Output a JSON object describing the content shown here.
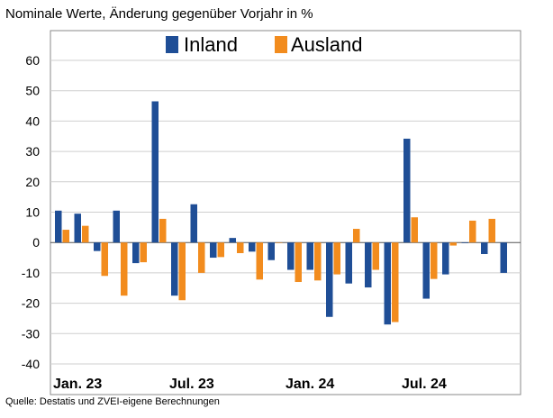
{
  "chart_data": {
    "type": "bar",
    "title": "Nominale Werte, Änderung gegenüber Vorjahr in %",
    "source": "Quelle: Destatis und ZVEI-eigene Berechnungen",
    "xlabel": "",
    "ylabel": "",
    "ylim": [
      -40,
      60
    ],
    "yticks": [
      60,
      50,
      40,
      30,
      20,
      10,
      0,
      -10,
      -20,
      -30,
      -40
    ],
    "grid": true,
    "legend_position": "top",
    "categories": [
      "Jan 23",
      "Feb 23",
      "Mär 23",
      "Apr 23",
      "Mai 23",
      "Jun 23",
      "Jul 23",
      "Aug 23",
      "Sep 23",
      "Okt 23",
      "Nov 23",
      "Dez 23",
      "Jan 24",
      "Feb 24",
      "Mär 24",
      "Apr 24",
      "Mai 24",
      "Jun 24",
      "Jul 24",
      "Aug 24",
      "Sep 24",
      "Okt 24",
      "Nov 24",
      "Dez 24"
    ],
    "x_labels": [
      {
        "text": "Jan. 23",
        "index": 0
      },
      {
        "text": "Jul. 23",
        "index": 6
      },
      {
        "text": "Jan. 24",
        "index": 12
      },
      {
        "text": "Jul. 24",
        "index": 18
      }
    ],
    "series": [
      {
        "name": "Inland",
        "color": "#1f4e96",
        "values": [
          10.5,
          9.5,
          -2.8,
          10.5,
          -6.8,
          46.5,
          -17.5,
          12.6,
          -5.0,
          1.5,
          -3.0,
          -5.8,
          -9.0,
          -9.0,
          -24.5,
          -13.5,
          -14.8,
          -27.0,
          34.2,
          -18.5,
          -10.5,
          -0.2,
          -3.8,
          -10.0
        ]
      },
      {
        "name": "Ausland",
        "color": "#f28c1e",
        "values": [
          4.2,
          5.5,
          -11.0,
          -17.5,
          -6.5,
          7.8,
          -19.0,
          -10.0,
          -4.8,
          -3.5,
          -12.2,
          0.0,
          -13.0,
          -12.5,
          -10.5,
          4.5,
          -9.0,
          -26.2,
          8.3,
          -12.0,
          -1.0,
          7.2,
          7.8,
          null
        ]
      }
    ]
  }
}
